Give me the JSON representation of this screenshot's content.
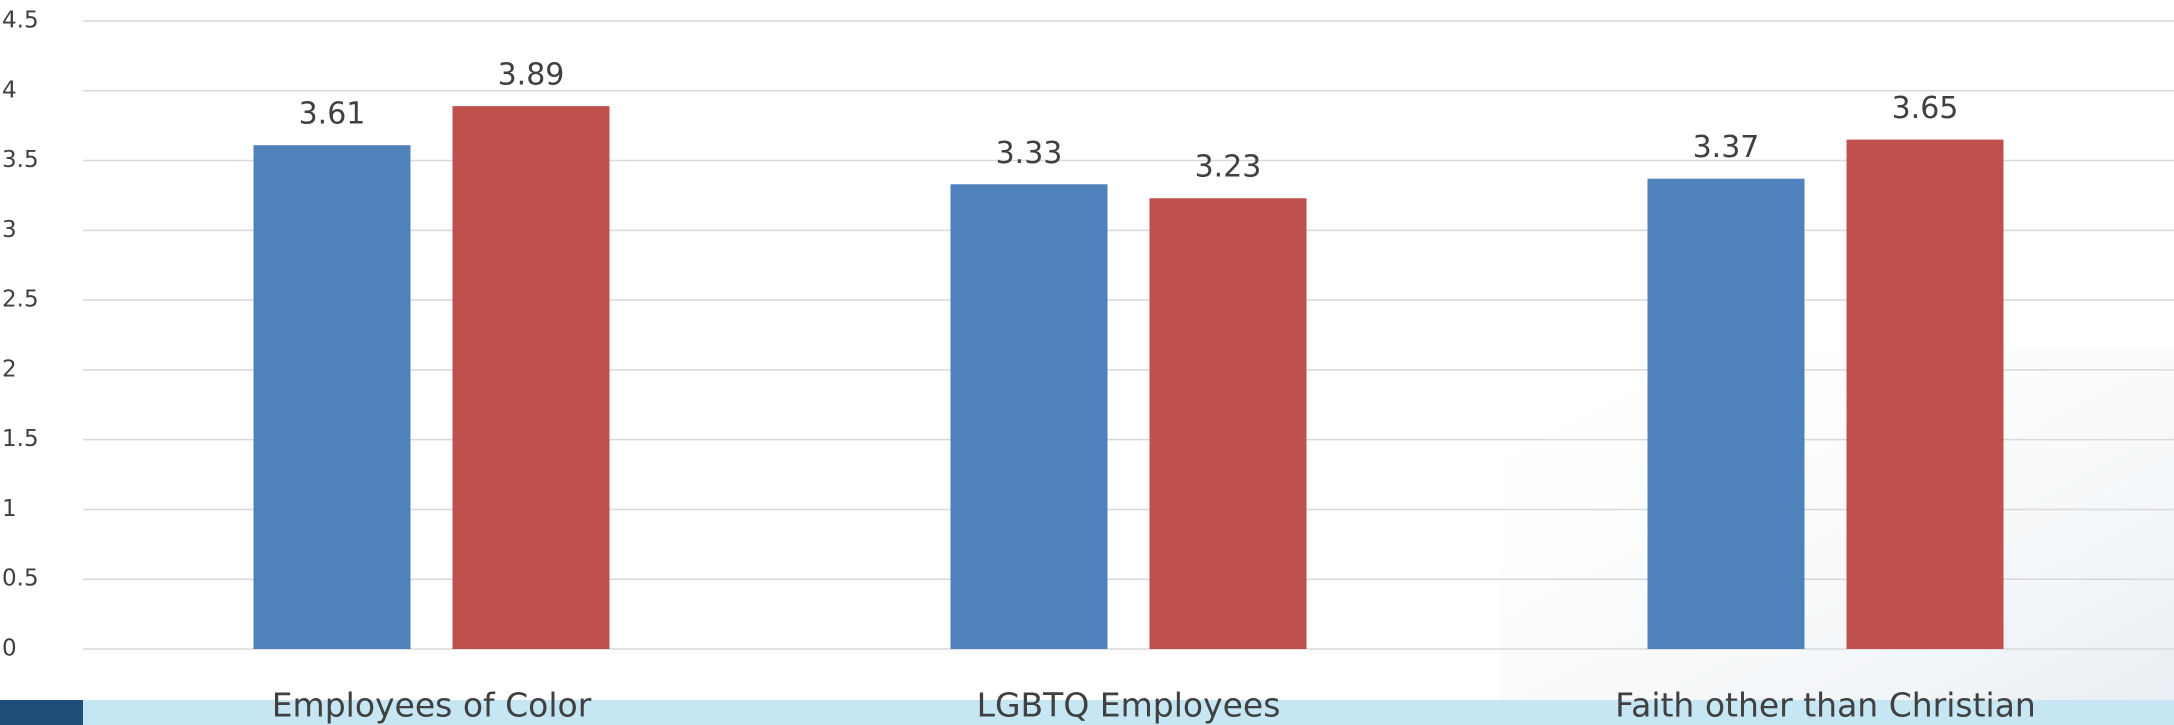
{
  "chart_data": {
    "type": "bar",
    "categories": [
      "Employees of Color",
      "LGBTQ Employees",
      "Faith other than Christian"
    ],
    "series": [
      {
        "color": "#4f81bd",
        "values": [
          3.61,
          3.33,
          3.37
        ]
      },
      {
        "color": "#c0504d",
        "values": [
          3.89,
          3.23,
          3.65
        ]
      }
    ],
    "ylim": [
      0,
      4.5
    ],
    "yticks": [
      0,
      0.5,
      1,
      1.5,
      2,
      2.5,
      3,
      3.5,
      4,
      4.5
    ],
    "grid": true
  }
}
